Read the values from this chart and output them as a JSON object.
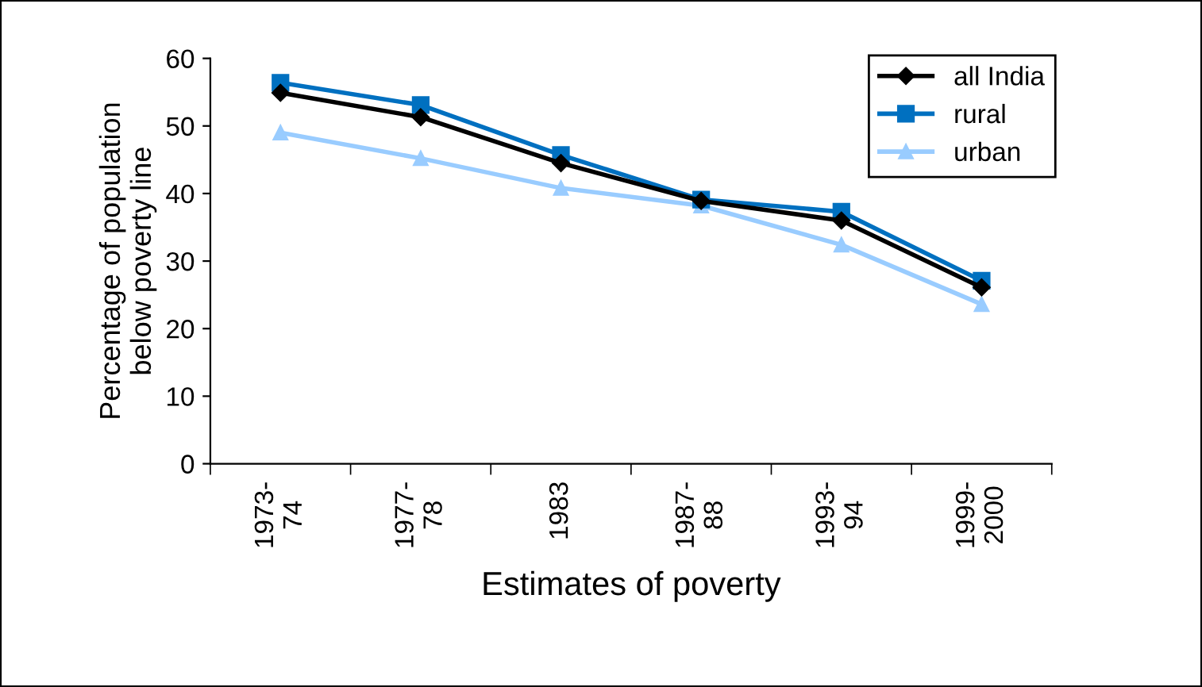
{
  "chart_data": {
    "type": "line",
    "xlabel": "Estimates of poverty",
    "ylabel": "Percentage of population\nbelow poverty line",
    "categories": [
      "1973-74",
      "1977-78",
      "1983",
      "1987-88",
      "1993-94",
      "1999-2000"
    ],
    "series": [
      {
        "name": "all India",
        "color": "#000000",
        "marker": "diamond",
        "values": [
          54.9,
          51.3,
          44.5,
          38.9,
          36.0,
          26.1
        ]
      },
      {
        "name": "rural",
        "color": "#0070c0",
        "marker": "square",
        "values": [
          56.4,
          53.1,
          45.7,
          39.1,
          37.3,
          27.1
        ]
      },
      {
        "name": "urban",
        "color": "#99ccff",
        "marker": "triangle",
        "values": [
          49.0,
          45.2,
          40.8,
          38.2,
          32.4,
          23.6
        ]
      }
    ],
    "ylim": [
      0,
      60
    ],
    "yticks": [
      0,
      10,
      20,
      30,
      40,
      50,
      60
    ],
    "grid": false,
    "legend": "top right",
    "line_style": "solid"
  }
}
